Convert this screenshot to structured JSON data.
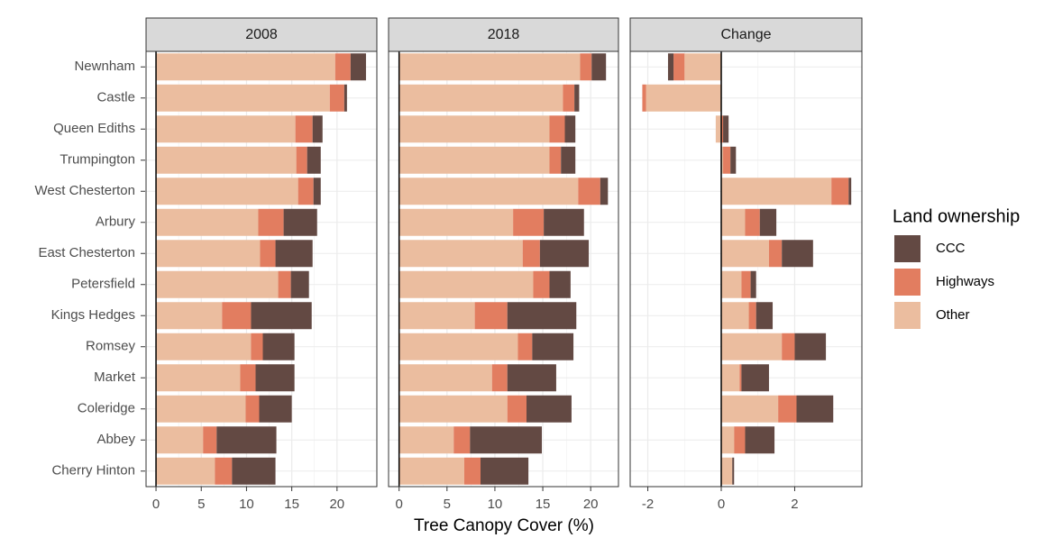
{
  "chart_data": {
    "type": "bar",
    "orientation": "horizontal",
    "stacked": true,
    "grid": true,
    "xlabel": "Tree Canopy Cover (%)",
    "legend_title": "Land ownership",
    "legend_position": "right",
    "categories": [
      "Newnham",
      "Castle",
      "Queen Ediths",
      "Trumpington",
      "West Chesterton",
      "Arbury",
      "East Chesterton",
      "Petersfield",
      "Kings Hedges",
      "Romsey",
      "Market",
      "Coleridge",
      "Abbey",
      "Cherry Hinton"
    ],
    "series": [
      {
        "name": "CCC",
        "color": "#634943"
      },
      {
        "name": "Highways",
        "color": "#e27d60"
      },
      {
        "name": "Other",
        "color": "#ebbd9f"
      }
    ],
    "facets": [
      {
        "title": "2008",
        "xlim": [
          -1.1,
          24.4
        ],
        "xticks": [
          0,
          5,
          10,
          15,
          20
        ],
        "series": [
          {
            "values": [
              1.7,
              0.3,
              1.1,
              1.5,
              0.8,
              3.7,
              4.1,
              2.0,
              6.7,
              3.5,
              4.3,
              3.6,
              6.6,
              4.8
            ]
          },
          {
            "values": [
              1.7,
              1.6,
              1.9,
              1.2,
              1.7,
              2.8,
              1.7,
              1.4,
              3.2,
              1.3,
              1.7,
              1.5,
              1.5,
              1.9
            ]
          },
          {
            "values": [
              19.8,
              19.2,
              15.4,
              15.5,
              15.7,
              11.3,
              11.5,
              13.5,
              7.3,
              10.5,
              9.3,
              9.9,
              5.2,
              6.5
            ]
          }
        ]
      },
      {
        "title": "2018",
        "xlim": [
          -1.1,
          22.9
        ],
        "xticks": [
          0,
          5,
          10,
          15,
          20
        ],
        "series": [
          {
            "values": [
              1.5,
              0.5,
              1.1,
              1.5,
              0.8,
              4.2,
              5.1,
              2.2,
              7.2,
              4.3,
              5.1,
              4.7,
              7.5,
              5.0
            ]
          },
          {
            "values": [
              1.2,
              1.2,
              1.6,
              1.2,
              2.3,
              3.2,
              1.8,
              1.7,
              3.4,
              1.5,
              1.6,
              2.0,
              1.7,
              1.7
            ]
          },
          {
            "values": [
              18.9,
              17.1,
              15.7,
              15.7,
              18.7,
              11.9,
              12.9,
              14.0,
              7.9,
              12.4,
              9.7,
              11.3,
              5.7,
              6.8
            ]
          }
        ]
      },
      {
        "title": "Change",
        "xlim": [
          -2.48,
          3.83
        ],
        "xticks": [
          -2,
          0,
          2
        ],
        "series": [
          {
            "values": [
              -0.15,
              0,
              0.15,
              0.15,
              0.07,
              0.45,
              0.85,
              0.15,
              0.45,
              0.85,
              0.75,
              1.0,
              0.8,
              0.05
            ]
          },
          {
            "values": [
              -0.3,
              -0.1,
              0.05,
              0.2,
              0.47,
              0.4,
              0.35,
              0.25,
              0.2,
              0.35,
              0.05,
              0.5,
              0.3,
              0
            ]
          },
          {
            "values": [
              -1.0,
              -2.05,
              -0.15,
              0.05,
              3.0,
              0.65,
              1.3,
              0.55,
              0.75,
              1.65,
              0.5,
              1.55,
              0.35,
              0.3
            ]
          }
        ]
      }
    ]
  }
}
